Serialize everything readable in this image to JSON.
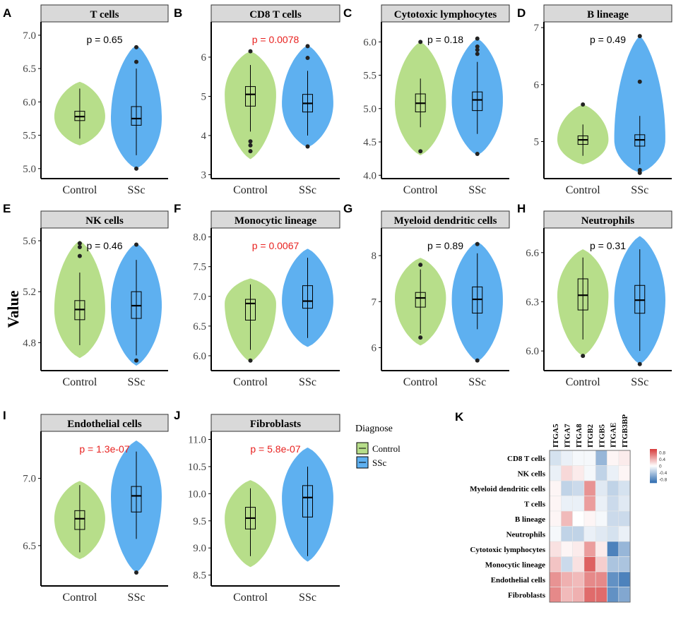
{
  "figure": {
    "y_axis_title": "Value",
    "group_labels": [
      "Control",
      "SSc"
    ],
    "colors": {
      "control": "#b7de8a",
      "ssc": "#5eb0f0",
      "significant": "#e8211f",
      "normal": "#000000",
      "strip": "#d9d9d9"
    }
  },
  "legend": {
    "title": "Diagnose",
    "items": [
      {
        "label": "Control",
        "color": "#b7de8a"
      },
      {
        "label": "SSc",
        "color": "#5eb0f0"
      }
    ]
  },
  "chart_data": [
    {
      "panel": "A",
      "type": "violin",
      "title": "T cells",
      "xlabel": "",
      "ylabel": "Value",
      "categories": [
        "Control",
        "SSc"
      ],
      "ylim": [
        4.85,
        7.2
      ],
      "yticks": [
        5.0,
        5.5,
        6.0,
        6.5,
        7.0
      ],
      "ytick_labels": [
        "5.0",
        "5.5",
        "6.0",
        "6.5",
        "7.0"
      ],
      "p_value": "p = 0.65",
      "significant": false,
      "series": [
        {
          "name": "Control",
          "violin_min": 5.35,
          "violin_max": 6.3,
          "q1": 5.72,
          "median": 5.78,
          "q3": 5.86,
          "whisker_low": 5.45,
          "whisker_high": 6.2,
          "outliers": []
        },
        {
          "name": "SSc",
          "violin_min": 5.0,
          "violin_max": 6.85,
          "q1": 5.65,
          "median": 5.75,
          "q3": 5.93,
          "whisker_low": 5.2,
          "whisker_high": 6.5,
          "outliers": [
            5.0,
            6.6,
            6.82
          ]
        }
      ]
    },
    {
      "panel": "B",
      "type": "violin",
      "title": "CD8 T cells",
      "xlabel": "",
      "ylabel": "Value",
      "categories": [
        "Control",
        "SSc"
      ],
      "ylim": [
        2.9,
        6.9
      ],
      "yticks": [
        3,
        4,
        5,
        6
      ],
      "ytick_labels": [
        "3",
        "4",
        "5",
        "6"
      ],
      "p_value": "p = 0.0078",
      "significant": true,
      "series": [
        {
          "name": "Control",
          "violin_min": 3.4,
          "violin_max": 6.15,
          "q1": 4.75,
          "median": 5.05,
          "q3": 5.25,
          "whisker_low": 4.1,
          "whisker_high": 5.8,
          "outliers": [
            3.6,
            3.75,
            3.85,
            6.15
          ]
        },
        {
          "name": "SSc",
          "violin_min": 3.7,
          "violin_max": 6.3,
          "q1": 4.6,
          "median": 4.82,
          "q3": 5.05,
          "whisker_low": 4.0,
          "whisker_high": 5.65,
          "outliers": [
            3.72,
            5.98,
            6.28
          ]
        }
      ]
    },
    {
      "panel": "C",
      "type": "violin",
      "title": "Cytotoxic lymphocytes",
      "xlabel": "",
      "ylabel": "Value",
      "categories": [
        "Control",
        "SSc"
      ],
      "ylim": [
        3.95,
        6.3
      ],
      "yticks": [
        4.0,
        4.5,
        5.0,
        5.5,
        6.0
      ],
      "ytick_labels": [
        "4.0",
        "4.5",
        "5.0",
        "5.5",
        "6.0"
      ],
      "p_value": "p = 0.18",
      "significant": false,
      "series": [
        {
          "name": "Control",
          "violin_min": 4.3,
          "violin_max": 6.0,
          "q1": 4.95,
          "median": 5.08,
          "q3": 5.22,
          "whisker_low": 4.72,
          "whisker_high": 5.45,
          "outliers": [
            4.36,
            6.0
          ]
        },
        {
          "name": "SSc",
          "violin_min": 4.3,
          "violin_max": 6.05,
          "q1": 4.97,
          "median": 5.13,
          "q3": 5.25,
          "whisker_low": 4.62,
          "whisker_high": 5.7,
          "outliers": [
            4.32,
            5.82,
            5.88,
            5.93,
            6.05
          ]
        }
      ]
    },
    {
      "panel": "D",
      "type": "violin",
      "title": "B lineage",
      "xlabel": "",
      "ylabel": "Value",
      "categories": [
        "Control",
        "SSc"
      ],
      "ylim": [
        4.35,
        7.1
      ],
      "yticks": [
        5,
        6,
        7
      ],
      "ytick_labels": [
        "5",
        "6",
        "7"
      ],
      "p_value": "p = 0.49",
      "significant": false,
      "series": [
        {
          "name": "Control",
          "violin_min": 4.6,
          "violin_max": 5.65,
          "q1": 4.95,
          "median": 5.03,
          "q3": 5.1,
          "whisker_low": 4.75,
          "whisker_high": 5.3,
          "outliers": [
            5.65
          ]
        },
        {
          "name": "SSc",
          "violin_min": 4.45,
          "violin_max": 6.85,
          "q1": 4.92,
          "median": 5.03,
          "q3": 5.12,
          "whisker_low": 4.6,
          "whisker_high": 5.45,
          "outliers": [
            4.45,
            4.5,
            6.05,
            6.85
          ]
        }
      ]
    },
    {
      "panel": "E",
      "type": "violin",
      "title": "NK cells",
      "xlabel": "",
      "ylabel": "Value",
      "categories": [
        "Control",
        "SSc"
      ],
      "ylim": [
        4.58,
        5.7
      ],
      "yticks": [
        4.8,
        5.2,
        5.6
      ],
      "ytick_labels": [
        "4.8",
        "5.2",
        "5.6"
      ],
      "p_value": "p = 0.46",
      "significant": false,
      "series": [
        {
          "name": "Control",
          "violin_min": 4.68,
          "violin_max": 5.6,
          "q1": 4.98,
          "median": 5.06,
          "q3": 5.13,
          "whisker_low": 4.78,
          "whisker_high": 5.35,
          "outliers": [
            5.48,
            5.55,
            5.58
          ]
        },
        {
          "name": "SSc",
          "violin_min": 4.62,
          "violin_max": 5.58,
          "q1": 4.99,
          "median": 5.09,
          "q3": 5.2,
          "whisker_low": 4.7,
          "whisker_high": 5.45,
          "outliers": [
            4.66,
            5.57
          ]
        }
      ]
    },
    {
      "panel": "F",
      "type": "violin",
      "title": "Monocytic lineage",
      "xlabel": "",
      "ylabel": "Value",
      "categories": [
        "Control",
        "SSc"
      ],
      "ylim": [
        5.75,
        8.15
      ],
      "yticks": [
        6.0,
        6.5,
        7.0,
        7.5,
        8.0
      ],
      "ytick_labels": [
        "6.0",
        "6.5",
        "7.0",
        "7.5",
        "8.0"
      ],
      "p_value": "p = 0.0067",
      "significant": true,
      "series": [
        {
          "name": "Control",
          "violin_min": 5.9,
          "violin_max": 7.3,
          "q1": 6.6,
          "median": 6.88,
          "q3": 6.95,
          "whisker_low": 6.1,
          "whisker_high": 7.2,
          "outliers": [
            5.92
          ]
        },
        {
          "name": "SSc",
          "violin_min": 6.15,
          "violin_max": 7.8,
          "q1": 6.8,
          "median": 6.92,
          "q3": 7.18,
          "whisker_low": 6.3,
          "whisker_high": 7.65,
          "outliers": []
        }
      ]
    },
    {
      "panel": "G",
      "type": "violin",
      "title": "Myeloid dendritic cells",
      "xlabel": "",
      "ylabel": "Value",
      "categories": [
        "Control",
        "SSc"
      ],
      "ylim": [
        5.5,
        8.6
      ],
      "yticks": [
        6,
        7,
        8
      ],
      "ytick_labels": [
        "6",
        "7",
        "8"
      ],
      "p_value": "p = 0.89",
      "significant": false,
      "series": [
        {
          "name": "Control",
          "violin_min": 6.05,
          "violin_max": 7.95,
          "q1": 6.88,
          "median": 7.08,
          "q3": 7.2,
          "whisker_low": 6.3,
          "whisker_high": 7.7,
          "outliers": [
            6.22,
            7.8
          ]
        },
        {
          "name": "SSc",
          "violin_min": 5.7,
          "violin_max": 8.3,
          "q1": 6.75,
          "median": 7.05,
          "q3": 7.32,
          "whisker_low": 6.4,
          "whisker_high": 8.05,
          "outliers": [
            5.72,
            8.25
          ]
        }
      ]
    },
    {
      "panel": "H",
      "type": "violin",
      "title": "Neutrophils",
      "xlabel": "",
      "ylabel": "Value",
      "categories": [
        "Control",
        "SSc"
      ],
      "ylim": [
        5.88,
        6.75
      ],
      "yticks": [
        6.0,
        6.3,
        6.6
      ],
      "ytick_labels": [
        "6.0",
        "6.3",
        "6.6"
      ],
      "p_value": "p = 0.31",
      "significant": false,
      "series": [
        {
          "name": "Control",
          "violin_min": 5.97,
          "violin_max": 6.62,
          "q1": 6.25,
          "median": 6.34,
          "q3": 6.44,
          "whisker_low": 6.07,
          "whisker_high": 6.57,
          "outliers": [
            5.97
          ]
        },
        {
          "name": "SSc",
          "violin_min": 5.92,
          "violin_max": 6.7,
          "q1": 6.23,
          "median": 6.31,
          "q3": 6.4,
          "whisker_low": 6.0,
          "whisker_high": 6.62,
          "outliers": [
            5.92
          ]
        }
      ]
    },
    {
      "panel": "I",
      "type": "violin",
      "title": "Endothelial cells",
      "xlabel": "",
      "ylabel": "Value",
      "categories": [
        "Control",
        "SSc"
      ],
      "ylim": [
        6.2,
        7.35
      ],
      "yticks": [
        6.5,
        7.0
      ],
      "ytick_labels": [
        "6.5",
        "7.0"
      ],
      "p_value": "p = 1.3e-07",
      "significant": true,
      "series": [
        {
          "name": "Control",
          "violin_min": 6.4,
          "violin_max": 6.98,
          "q1": 6.62,
          "median": 6.7,
          "q3": 6.76,
          "whisker_low": 6.45,
          "whisker_high": 6.95,
          "outliers": []
        },
        {
          "name": "SSc",
          "violin_min": 6.3,
          "violin_max": 7.28,
          "q1": 6.75,
          "median": 6.87,
          "q3": 6.94,
          "whisker_low": 6.55,
          "whisker_high": 7.2,
          "outliers": [
            6.3
          ]
        }
      ]
    },
    {
      "panel": "J",
      "type": "violin",
      "title": "Fibroblasts",
      "xlabel": "",
      "ylabel": "Value",
      "categories": [
        "Control",
        "SSc"
      ],
      "ylim": [
        8.3,
        11.15
      ],
      "yticks": [
        8.5,
        9.0,
        9.5,
        10.0,
        10.5,
        11.0
      ],
      "ytick_labels": [
        "8.5",
        "9.0",
        "9.5",
        "10.0",
        "10.5",
        "11.0"
      ],
      "p_value": "p = 5.8e-07",
      "significant": true,
      "series": [
        {
          "name": "Control",
          "violin_min": 8.65,
          "violin_max": 10.25,
          "q1": 9.35,
          "median": 9.55,
          "q3": 9.75,
          "whisker_low": 8.85,
          "whisker_high": 10.1,
          "outliers": []
        },
        {
          "name": "SSc",
          "violin_min": 8.75,
          "violin_max": 10.85,
          "q1": 9.57,
          "median": 9.93,
          "q3": 10.15,
          "whisker_low": 8.85,
          "whisker_high": 10.5,
          "outliers": []
        }
      ]
    },
    {
      "panel": "K",
      "type": "heatmap",
      "title": "",
      "columns": [
        "ITGA5",
        "ITGA7",
        "ITGA8",
        "ITGB2",
        "ITGB5",
        "ITGAE",
        "ITGB3BP"
      ],
      "rows": [
        "CD8 T cells",
        "NK cells",
        "Myeloid dendritic cells",
        "T cells",
        "B lineage",
        "Neutrophils",
        "Cytotoxic lymphocytes",
        "Monocytic lineage",
        "Endothelial cells",
        "Fibroblasts"
      ],
      "values": [
        [
          -0.2,
          -0.1,
          -0.05,
          -0.05,
          -0.5,
          0.05,
          0.1
        ],
        [
          -0.1,
          0.2,
          0.1,
          -0.05,
          -0.3,
          -0.1,
          0.05
        ],
        [
          0.05,
          -0.3,
          -0.25,
          0.55,
          -0.15,
          -0.3,
          -0.2
        ],
        [
          0.05,
          -0.1,
          -0.1,
          0.5,
          -0.1,
          -0.25,
          -0.15
        ],
        [
          0.05,
          0.35,
          0.0,
          0.05,
          -0.05,
          -0.25,
          -0.25
        ],
        [
          -0.05,
          -0.3,
          -0.3,
          -0.1,
          -0.15,
          -0.2,
          -0.1
        ],
        [
          0.15,
          0.05,
          0.1,
          0.5,
          0.1,
          -0.85,
          -0.5
        ],
        [
          0.3,
          -0.25,
          0.15,
          0.8,
          0.25,
          -0.4,
          -0.4
        ],
        [
          0.55,
          0.4,
          0.35,
          0.6,
          0.6,
          -0.75,
          -0.85
        ],
        [
          0.6,
          0.35,
          0.4,
          0.75,
          0.75,
          -0.75,
          -0.6
        ]
      ],
      "colorbar_ticks": [
        0.8,
        0.4,
        0.0,
        -0.4,
        -0.8
      ],
      "colorbar_labels": [
        "0.8",
        "0.4",
        "0",
        "-0.4",
        "-0.8"
      ],
      "vmin": -1,
      "vmax": 1
    }
  ]
}
